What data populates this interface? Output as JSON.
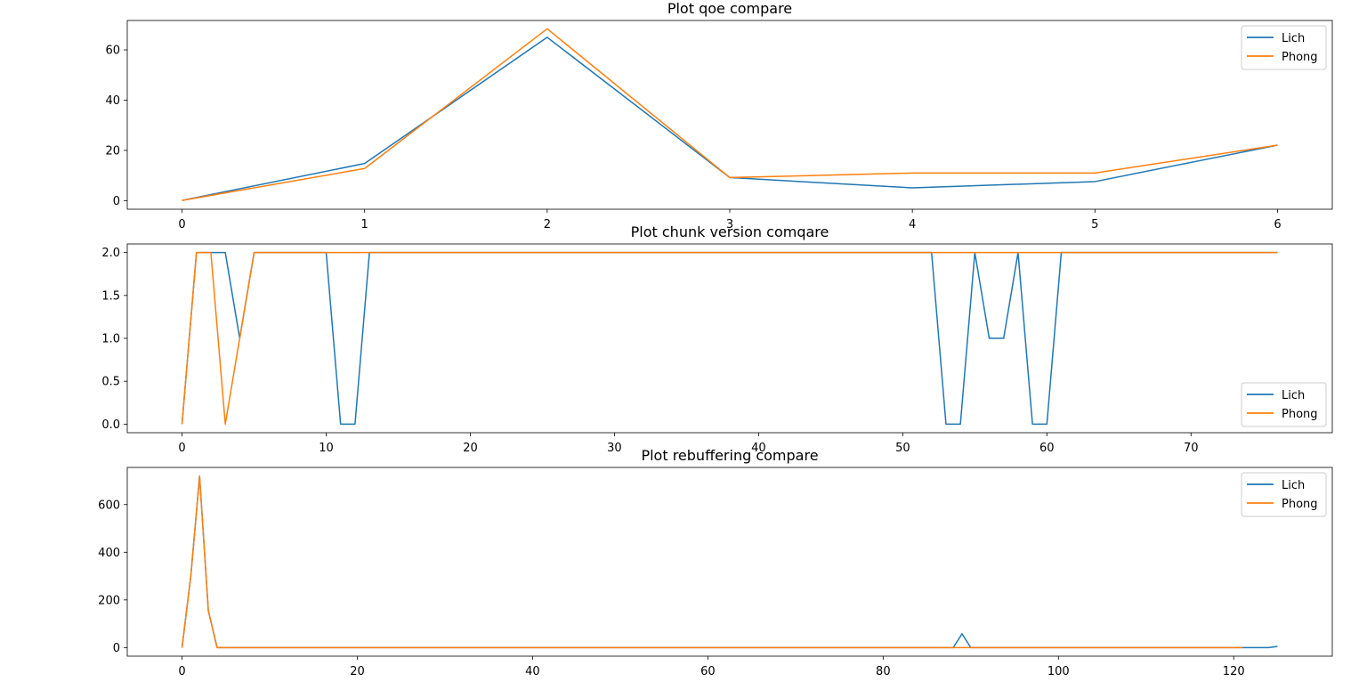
{
  "figure": {
    "colors": {
      "series_1": "#1f77b4",
      "series_2": "#ff7f0e"
    }
  },
  "chart_data": [
    {
      "type": "line",
      "title": "Plot qoe compare",
      "xlabel": "",
      "ylabel": "",
      "xlim": [
        -0.3,
        6.3
      ],
      "ylim": [
        -3.4,
        71.7
      ],
      "xticks": [
        0,
        1,
        2,
        3,
        4,
        5,
        6
      ],
      "yticks": [
        0,
        20,
        40,
        60
      ],
      "ytick_format": "int",
      "legend": "upper right",
      "series": [
        {
          "name": "Lich",
          "color": "#1f77b4",
          "x": [
            0,
            1,
            2,
            3,
            4,
            5,
            6
          ],
          "y": [
            0.1,
            14.8,
            65.0,
            9.2,
            5.1,
            7.6,
            22.1
          ]
        },
        {
          "name": "Phong",
          "color": "#ff7f0e",
          "x": [
            0,
            1,
            2,
            3,
            4,
            5,
            6
          ],
          "y": [
            0.1,
            12.8,
            68.4,
            9.2,
            11.0,
            11.0,
            22.1
          ]
        }
      ]
    },
    {
      "type": "line",
      "title": "Plot chunk version comqare",
      "xlabel": "",
      "ylabel": "",
      "xlim": [
        -3.8,
        79.8
      ],
      "ylim": [
        -0.1,
        2.1
      ],
      "xticks": [
        0,
        10,
        20,
        30,
        40,
        50,
        60,
        70
      ],
      "yticks": [
        0,
        0.5,
        1,
        1.5,
        2
      ],
      "ytick_format": "one_decimal",
      "legend": "lower right",
      "series": [
        {
          "name": "Lich",
          "color": "#1f77b4",
          "x": [
            0,
            1,
            2,
            3,
            4,
            5,
            10,
            11,
            12,
            13,
            52,
            53,
            54,
            55,
            56,
            57,
            58,
            59,
            60,
            61,
            76
          ],
          "y": [
            0,
            2,
            2,
            2,
            1,
            2,
            2,
            0,
            0,
            2,
            2,
            0,
            0,
            2,
            1,
            1,
            2,
            0,
            0,
            2,
            2
          ]
        },
        {
          "name": "Phong",
          "color": "#ff7f0e",
          "x": [
            0,
            1,
            2,
            3,
            4,
            5,
            76
          ],
          "y": [
            0,
            2,
            2,
            0,
            1,
            2,
            2
          ]
        }
      ]
    },
    {
      "type": "line",
      "title": "Plot rebuffering compare",
      "xlabel": "",
      "ylabel": "",
      "xlim": [
        -6.25,
        131.25
      ],
      "ylim": [
        -36,
        756
      ],
      "xticks": [
        0,
        20,
        40,
        60,
        80,
        100,
        120
      ],
      "yticks": [
        0,
        200,
        400,
        600
      ],
      "ytick_format": "int",
      "legend": "upper right",
      "series": [
        {
          "name": "Lich",
          "color": "#1f77b4",
          "x": [
            0,
            1,
            2,
            3,
            4,
            88,
            89,
            90,
            124,
            125
          ],
          "y": [
            0,
            300,
            720,
            155,
            0,
            0,
            58,
            0,
            0,
            5
          ]
        },
        {
          "name": "Phong",
          "color": "#ff7f0e",
          "x": [
            0,
            1,
            2,
            3,
            4,
            121
          ],
          "y": [
            0,
            300,
            720,
            155,
            0,
            0
          ]
        }
      ]
    }
  ]
}
